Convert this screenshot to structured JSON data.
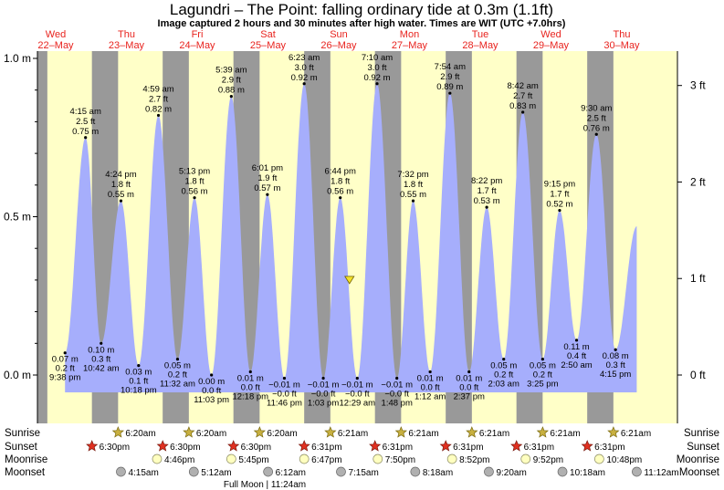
{
  "title": "Lagundri – The Point: falling  ordinary tide at 0.3m (1.1ft)",
  "subtitle": "Image captured 2 hours and 30 minutes after high water. Times are WIT (UTC +7.0hrs)",
  "days": [
    {
      "dow": "Wed",
      "date": "22–May"
    },
    {
      "dow": "Thu",
      "date": "23–May"
    },
    {
      "dow": "Fri",
      "date": "24–May"
    },
    {
      "dow": "Sat",
      "date": "25–May"
    },
    {
      "dow": "Sun",
      "date": "26–May"
    },
    {
      "dow": "Mon",
      "date": "27–May"
    },
    {
      "dow": "Tue",
      "date": "28–May"
    },
    {
      "dow": "Wed",
      "date": "29–May"
    },
    {
      "dow": "Thu",
      "date": "30–May"
    }
  ],
  "row_labels": {
    "sunrise": "Sunrise",
    "sunset": "Sunset",
    "moonrise": "Moonrise",
    "moonset": "Moonset"
  },
  "moon_phase_note": "Full Moon | 11:24am",
  "colors": {
    "day_band": "#ffffc8",
    "night_band": "#999999",
    "tide_fill": "#a6aefc",
    "day_label": "#e8231e",
    "sun_star": "#c8b040",
    "sunset_star": "#e03020",
    "moonrise": "#ffffc0",
    "moonset": "#b0b0b0"
  },
  "chart_data": {
    "type": "area",
    "title": "Lagundri – The Point: falling  ordinary tide at 0.3m (1.1ft)",
    "xlabel": "",
    "ylabel": "",
    "ylim_m": [
      -0.07,
      1.03
    ],
    "left_axis_ticks": [
      "0.0 m",
      "0.5 m",
      "1.0 m"
    ],
    "right_axis_ticks": [
      "0 ft",
      "1 ft",
      "2 ft",
      "3 ft"
    ],
    "current_level": {
      "day": 4.41,
      "height_m": 0.3,
      "marker": "triangle"
    },
    "tide_extremes": [
      {
        "day": 0.39,
        "type": "low",
        "time": "9:38 pm",
        "m": "0.07 m",
        "ft": "0.2 ft",
        "height_m": 0.07
      },
      {
        "day": 0.68,
        "type": "high",
        "time": "4:15 am",
        "m": "0.75 m",
        "ft": "2.5 ft",
        "height_m": 0.75
      },
      {
        "day": 0.9,
        "type": "low",
        "time": "10:42 am",
        "m": "0.10 m",
        "ft": "0.3 ft",
        "height_m": 0.1
      },
      {
        "day": 1.18,
        "type": "high",
        "time": "4:24 pm",
        "m": "0.55 m",
        "ft": "1.8 ft",
        "height_m": 0.55
      },
      {
        "day": 1.43,
        "type": "low",
        "time": "10:18 pm",
        "m": "0.03 m",
        "ft": "0.1 ft",
        "height_m": 0.03
      },
      {
        "day": 1.71,
        "type": "high",
        "time": "4:59 am",
        "m": "0.82 m",
        "ft": "2.7 ft",
        "height_m": 0.82
      },
      {
        "day": 1.98,
        "type": "low",
        "time": "11:32 am",
        "m": "0.05 m",
        "ft": "0.2 ft",
        "height_m": 0.05
      },
      {
        "day": 2.22,
        "type": "high",
        "time": "5:13 pm",
        "m": "0.56 m",
        "ft": "1.8 ft",
        "height_m": 0.56
      },
      {
        "day": 2.46,
        "type": "low",
        "time": "11:03 pm",
        "m": "0.00 m",
        "ft": "0.0 ft",
        "height_m": 0.0
      },
      {
        "day": 2.74,
        "type": "high",
        "time": "5:39 am",
        "m": "0.88 m",
        "ft": "2.9 ft",
        "height_m": 0.88
      },
      {
        "day": 3.01,
        "type": "low",
        "time": "12:18 pm",
        "m": "0.01 m",
        "ft": "0.0 ft",
        "height_m": 0.01
      },
      {
        "day": 3.25,
        "type": "high",
        "time": "6:01 pm",
        "m": "0.57 m",
        "ft": "1.9 ft",
        "height_m": 0.57
      },
      {
        "day": 3.49,
        "type": "low",
        "time": "11:46 pm",
        "m": "−0.01 m",
        "ft": "−0.0 ft",
        "height_m": -0.01
      },
      {
        "day": 3.77,
        "type": "high",
        "time": "6:23 am",
        "m": "0.92 m",
        "ft": "3.0 ft",
        "height_m": 0.92
      },
      {
        "day": 4.04,
        "type": "low",
        "time": "1:03 pm",
        "m": "−0.01 m",
        "ft": "−0.0 ft",
        "height_m": -0.01
      },
      {
        "day": 4.28,
        "type": "high",
        "time": "6:44 pm",
        "m": "0.56 m",
        "ft": "1.8 ft",
        "height_m": 0.56
      },
      {
        "day": 4.52,
        "type": "low",
        "time": "12:29 am",
        "m": "−0.01 m",
        "ft": "−0.0 ft",
        "height_m": -0.01
      },
      {
        "day": 4.8,
        "type": "high",
        "time": "7:10 am",
        "m": "0.92 m",
        "ft": "3.0 ft",
        "height_m": 0.92
      },
      {
        "day": 5.08,
        "type": "low",
        "time": "1:48 pm",
        "m": "−0.01 m",
        "ft": "−0.0 ft",
        "height_m": -0.01
      },
      {
        "day": 5.31,
        "type": "high",
        "time": "7:32 pm",
        "m": "0.55 m",
        "ft": "1.8 ft",
        "height_m": 0.55
      },
      {
        "day": 5.55,
        "type": "low",
        "time": "1:12 am",
        "m": "0.01 m",
        "ft": "0.0 ft",
        "height_m": 0.01
      },
      {
        "day": 5.83,
        "type": "high",
        "time": "7:54 am",
        "m": "0.89 m",
        "ft": "2.9 ft",
        "height_m": 0.89
      },
      {
        "day": 6.1,
        "type": "low",
        "time": "2:37 pm",
        "m": "0.01 m",
        "ft": "0.0 ft",
        "height_m": 0.01
      },
      {
        "day": 6.35,
        "type": "high",
        "time": "8:22 pm",
        "m": "0.53 m",
        "ft": "1.7 ft",
        "height_m": 0.53
      },
      {
        "day": 6.59,
        "type": "low",
        "time": "2:03 am",
        "m": "0.05 m",
        "ft": "0.2 ft",
        "height_m": 0.05
      },
      {
        "day": 6.86,
        "type": "high",
        "time": "8:42 am",
        "m": "0.83 m",
        "ft": "2.7 ft",
        "height_m": 0.83
      },
      {
        "day": 7.14,
        "type": "low",
        "time": "3:25 pm",
        "m": "0.05 m",
        "ft": "0.2 ft",
        "height_m": 0.05
      },
      {
        "day": 7.38,
        "type": "high",
        "time": "9:15 pm",
        "m": "0.52 m",
        "ft": "1.7 ft",
        "height_m": 0.52
      },
      {
        "day": 7.62,
        "type": "low",
        "time": "2:50 am",
        "m": "0.11 m",
        "ft": "0.4 ft",
        "height_m": 0.11
      },
      {
        "day": 7.9,
        "type": "high",
        "time": "9:30 am",
        "m": "0.76 m",
        "ft": "2.5 ft",
        "height_m": 0.76
      },
      {
        "day": 8.17,
        "type": "low",
        "time": "4:15 pm",
        "m": "0.08 m",
        "ft": "0.3 ft",
        "height_m": 0.08
      }
    ],
    "curve_end": {
      "day": 8.47,
      "height_m": 0.47
    },
    "night_bands": [
      [
        0.0,
        0.14
      ],
      [
        0.77,
        1.14
      ],
      [
        1.77,
        2.14
      ],
      [
        2.77,
        3.14
      ],
      [
        3.77,
        4.14
      ],
      [
        4.77,
        5.14
      ],
      [
        5.77,
        6.14
      ],
      [
        6.77,
        7.14
      ],
      [
        7.77,
        8.14
      ]
    ],
    "sunrise": [
      {
        "day": 1.14,
        "time": "6:20am"
      },
      {
        "day": 2.14,
        "time": "6:20am"
      },
      {
        "day": 3.14,
        "time": "6:20am"
      },
      {
        "day": 4.14,
        "time": "6:21am"
      },
      {
        "day": 5.14,
        "time": "6:21am"
      },
      {
        "day": 6.14,
        "time": "6:21am"
      },
      {
        "day": 7.14,
        "time": "6:21am"
      },
      {
        "day": 8.14,
        "time": "6:21am"
      }
    ],
    "sunset": [
      {
        "day": 0.77,
        "time": "6:30pm"
      },
      {
        "day": 1.77,
        "time": "6:30pm"
      },
      {
        "day": 2.77,
        "time": "6:30pm"
      },
      {
        "day": 3.77,
        "time": "6:31pm"
      },
      {
        "day": 4.77,
        "time": "6:31pm"
      },
      {
        "day": 5.77,
        "time": "6:31pm"
      },
      {
        "day": 6.77,
        "time": "6:31pm"
      },
      {
        "day": 7.77,
        "time": "6:31pm"
      }
    ],
    "moonrise": [
      {
        "day": 1.69,
        "time": "4:46pm"
      },
      {
        "day": 2.74,
        "time": "5:45pm"
      },
      {
        "day": 3.77,
        "time": "6:47pm"
      },
      {
        "day": 4.81,
        "time": "7:50pm"
      },
      {
        "day": 5.86,
        "time": "8:52pm"
      },
      {
        "day": 6.9,
        "time": "9:52pm"
      },
      {
        "day": 7.94,
        "time": "10:48pm"
      }
    ],
    "moonset": [
      {
        "day": 1.18,
        "time": "4:15am"
      },
      {
        "day": 2.21,
        "time": "5:12am"
      },
      {
        "day": 3.26,
        "time": "6:12am"
      },
      {
        "day": 4.29,
        "time": "7:15am"
      },
      {
        "day": 5.34,
        "time": "8:18am"
      },
      {
        "day": 6.38,
        "time": "9:20am"
      },
      {
        "day": 7.42,
        "time": "10:18am"
      },
      {
        "day": 8.47,
        "time": "11:12am"
      }
    ]
  }
}
